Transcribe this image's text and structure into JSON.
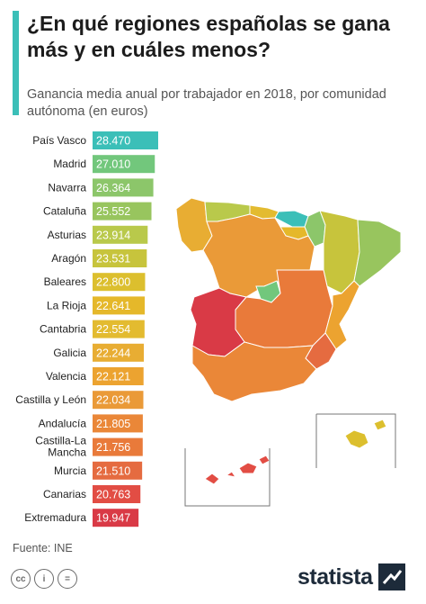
{
  "header": {
    "title": "¿En qué regiones españolas se gana más y en cuáles menos?",
    "subtitle": "Ganancia media anual por trabajador en 2018, por comunidad autónoma (en euros)"
  },
  "colors": {
    "accent": "#3bbfb8",
    "brand": "#1d2b3a"
  },
  "chart_data": {
    "type": "bar",
    "orientation": "horizontal",
    "title": "¿En qué regiones españolas se gana más y en cuáles menos?",
    "subtitle": "Ganancia media anual por trabajador en 2018, por comunidad autónoma (en euros)",
    "categories": [
      "País Vasco",
      "Madrid",
      "Navarra",
      "Cataluña",
      "Asturias",
      "Aragón",
      "Baleares",
      "La Rioja",
      "Cantabria",
      "Galicia",
      "Valencia",
      "Castilla y León",
      "Andalucía",
      "Castilla-La Mancha",
      "Murcia",
      "Canarias",
      "Extremadura"
    ],
    "values": [
      28470,
      27010,
      26364,
      25552,
      23914,
      23531,
      22800,
      22641,
      22554,
      22244,
      22121,
      22034,
      21805,
      21756,
      21510,
      20763,
      19947
    ],
    "labels": [
      "28.470",
      "27.010",
      "26.364",
      "25.552",
      "23.914",
      "23.531",
      "22.800",
      "22.641",
      "22.554",
      "22.244",
      "22.121",
      "22.034",
      "21.805",
      "21.756",
      "21.510",
      "20.763",
      "19.947"
    ],
    "colors": [
      "#3bbfb8",
      "#72c77c",
      "#8cc66a",
      "#98c55e",
      "#b9c94b",
      "#c7c43c",
      "#dcbf2e",
      "#e5b82a",
      "#e3bb30",
      "#e8ad33",
      "#eca330",
      "#ea9a38",
      "#ea8738",
      "#e97a3a",
      "#e56b40",
      "#e24d44",
      "#d93a46"
    ],
    "legend": "none",
    "grid": false
  },
  "map": {
    "regions": [
      {
        "name": "Galicia",
        "color": "#e8ad33"
      },
      {
        "name": "Asturias",
        "color": "#b9c94b"
      },
      {
        "name": "Cantabria",
        "color": "#e3bb30"
      },
      {
        "name": "País Vasco",
        "color": "#3bbfb8"
      },
      {
        "name": "Navarra",
        "color": "#8cc66a"
      },
      {
        "name": "La Rioja",
        "color": "#e5b82a"
      },
      {
        "name": "Aragón",
        "color": "#c7c43c"
      },
      {
        "name": "Cataluña",
        "color": "#98c55e"
      },
      {
        "name": "Castilla y León",
        "color": "#ea9a38"
      },
      {
        "name": "Madrid",
        "color": "#72c77c"
      },
      {
        "name": "Castilla-La Mancha",
        "color": "#e97a3a"
      },
      {
        "name": "Extremadura",
        "color": "#d93a46"
      },
      {
        "name": "Valencia",
        "color": "#eca330"
      },
      {
        "name": "Murcia",
        "color": "#e56b40"
      },
      {
        "name": "Andalucía",
        "color": "#ea8738"
      },
      {
        "name": "Baleares",
        "color": "#dcbf2e"
      },
      {
        "name": "Canarias",
        "color": "#e24d44"
      }
    ]
  },
  "source": "Fuente: INE",
  "footer": {
    "license_icons": [
      {
        "icon": "cc-icon",
        "glyph": "cc"
      },
      {
        "icon": "attribution-icon",
        "glyph": "i"
      },
      {
        "icon": "equals-icon",
        "glyph": "="
      }
    ],
    "brand": "statista"
  }
}
